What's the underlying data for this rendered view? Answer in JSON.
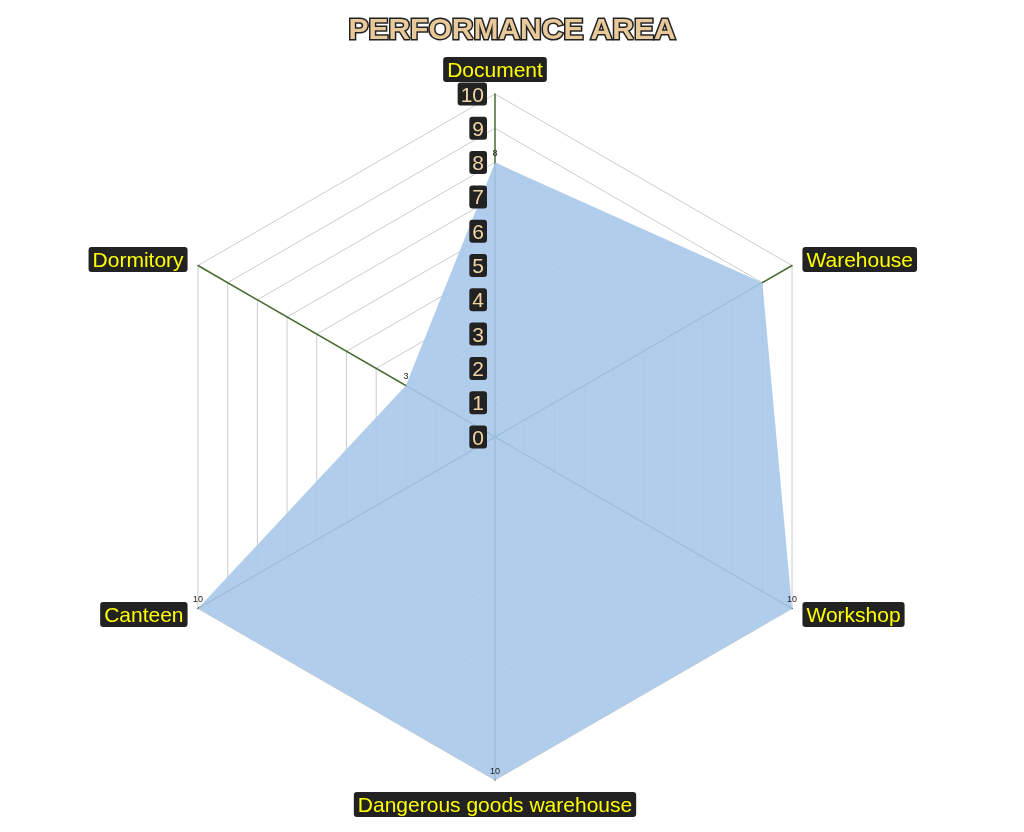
{
  "chart_data": {
    "type": "radar",
    "title": "PERFORMANCE AREA",
    "categories": [
      "Document",
      "Warehouse",
      "Workshop",
      "Dangerous goods warehouse",
      "Canteen",
      "Dormitory"
    ],
    "series": [
      {
        "color": "#a9c8ea",
        "values": [
          8,
          9,
          10,
          10,
          10,
          3
        ],
        "value_labels": [
          "8",
          null,
          "10",
          "10",
          "10",
          "3"
        ]
      }
    ],
    "ylim": [
      0,
      10
    ],
    "yticks": [
      0,
      1,
      2,
      3,
      4,
      5,
      6,
      7,
      8,
      9,
      10
    ],
    "grid": true
  }
}
